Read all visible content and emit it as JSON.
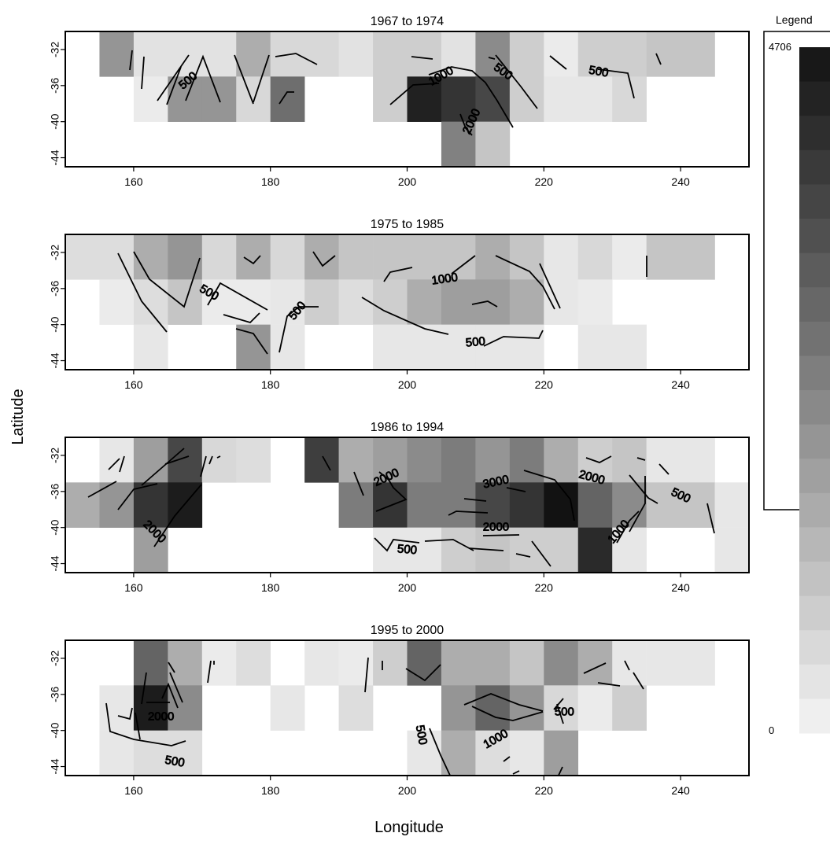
{
  "chart_data": {
    "type": "heatmap",
    "xlabel": "Longitude",
    "ylabel": "Latitude",
    "xlim": [
      150,
      250
    ],
    "ylim": [
      -45,
      -30
    ],
    "x_ticks": [
      160,
      180,
      200,
      220,
      240
    ],
    "y_ticks": [
      -32,
      -36,
      -40,
      -44
    ],
    "cell_lon_width": 5,
    "cell_lat_height": 5,
    "row_lat_bounds": [
      [
        -35,
        -30
      ],
      [
        -40,
        -35
      ],
      [
        -45,
        -40
      ]
    ],
    "contour_levels": [
      500,
      1000,
      2000,
      3000
    ],
    "legend": {
      "title": "Legend",
      "min": 0,
      "max": 4706,
      "max_label": "4706",
      "min_label": "0",
      "steps": 20
    },
    "panels": [
      {
        "title": "1967 to 1974",
        "rows": [
          {
            "lat_top": -30,
            "cells": [
              [
                155,
                2000
              ],
              [
                160,
                400
              ],
              [
                165,
                400
              ],
              [
                170,
                400
              ],
              [
                175,
                1500
              ],
              [
                180,
                600
              ],
              [
                185,
                600
              ],
              [
                190,
                400
              ],
              [
                195,
                800
              ],
              [
                200,
                800
              ],
              [
                205,
                400
              ],
              [
                210,
                2200
              ],
              [
                215,
                800
              ],
              [
                220,
                200
              ],
              [
                225,
                800
              ],
              [
                230,
                800
              ],
              [
                235,
                1000
              ],
              [
                240,
                1000
              ]
            ]
          },
          {
            "lat_top": -35,
            "cells": [
              [
                160,
                200
              ],
              [
                165,
                2000
              ],
              [
                170,
                2000
              ],
              [
                175,
                600
              ],
              [
                180,
                2800
              ],
              [
                195,
                800
              ],
              [
                200,
                4400
              ],
              [
                205,
                4000
              ],
              [
                210,
                3600
              ],
              [
                215,
                800
              ],
              [
                220,
                300
              ],
              [
                225,
                300
              ],
              [
                230,
                600
              ]
            ]
          },
          {
            "lat_top": -40,
            "cells": [
              [
                205,
                2400
              ],
              [
                210,
                1000
              ]
            ]
          }
        ],
        "contour_labels": [
          {
            "text": "500",
            "lon": 168,
            "lat": -35.5,
            "rot": -40
          },
          {
            "text": "1000",
            "lon": 205,
            "lat": -35,
            "rot": -30
          },
          {
            "text": "500",
            "lon": 214,
            "lat": -34.5,
            "rot": 35
          },
          {
            "text": "500",
            "lon": 228,
            "lat": -34.5,
            "rot": 10
          },
          {
            "text": "2000",
            "lon": 209.5,
            "lat": -40,
            "rot": -65
          }
        ]
      },
      {
        "title": "1975 to 1985",
        "rows": [
          {
            "lat_top": -30,
            "cells": [
              [
                150,
                500
              ],
              [
                155,
                500
              ],
              [
                160,
                1500
              ],
              [
                165,
                2000
              ],
              [
                170,
                600
              ],
              [
                175,
                1500
              ],
              [
                180,
                600
              ],
              [
                185,
                1500
              ],
              [
                190,
                1000
              ],
              [
                195,
                1000
              ],
              [
                200,
                1000
              ],
              [
                205,
                1000
              ],
              [
                210,
                1500
              ],
              [
                215,
                1000
              ],
              [
                220,
                300
              ],
              [
                225,
                600
              ],
              [
                230,
                200
              ],
              [
                235,
                1000
              ],
              [
                240,
                1000
              ]
            ]
          },
          {
            "lat_top": -35,
            "cells": [
              [
                155,
                200
              ],
              [
                160,
                500
              ],
              [
                165,
                1000
              ],
              [
                170,
                200
              ],
              [
                175,
                200
              ],
              [
                180,
                300
              ],
              [
                185,
                800
              ],
              [
                190,
                500
              ],
              [
                195,
                800
              ],
              [
                200,
                1500
              ],
              [
                205,
                1800
              ],
              [
                210,
                1800
              ],
              [
                215,
                1500
              ],
              [
                220,
                300
              ],
              [
                225,
                200
              ]
            ]
          },
          {
            "lat_top": -40,
            "cells": [
              [
                160,
                300
              ],
              [
                175,
                2000
              ],
              [
                180,
                300
              ],
              [
                195,
                300
              ],
              [
                200,
                300
              ],
              [
                205,
                300
              ],
              [
                210,
                300
              ],
              [
                215,
                300
              ],
              [
                225,
                300
              ],
              [
                230,
                300
              ]
            ]
          }
        ],
        "contour_labels": [
          {
            "text": "500",
            "lon": 171,
            "lat": -36.5,
            "rot": 30
          },
          {
            "text": "500",
            "lon": 184,
            "lat": -38.5,
            "rot": -50
          },
          {
            "text": "1000",
            "lon": 205.5,
            "lat": -35,
            "rot": -8
          },
          {
            "text": "500",
            "lon": 210,
            "lat": -42,
            "rot": -5
          }
        ]
      },
      {
        "title": "1986 to 1994",
        "rows": [
          {
            "lat_top": -30,
            "cells": [
              [
                155,
                300
              ],
              [
                160,
                1800
              ],
              [
                165,
                3600
              ],
              [
                170,
                600
              ],
              [
                175,
                500
              ],
              [
                185,
                3800
              ],
              [
                190,
                1500
              ],
              [
                195,
                1800
              ],
              [
                200,
                2200
              ],
              [
                205,
                2500
              ],
              [
                210,
                2000
              ],
              [
                215,
                2500
              ],
              [
                220,
                1500
              ],
              [
                225,
                800
              ],
              [
                230,
                1000
              ],
              [
                235,
                300
              ],
              [
                240,
                300
              ]
            ]
          },
          {
            "lat_top": -35,
            "cells": [
              [
                150,
                1500
              ],
              [
                155,
                2000
              ],
              [
                160,
                4000
              ],
              [
                165,
                4500
              ],
              [
                190,
                2500
              ],
              [
                195,
                4000
              ],
              [
                200,
                2500
              ],
              [
                205,
                2500
              ],
              [
                210,
                3600
              ],
              [
                215,
                4000
              ],
              [
                220,
                4706
              ],
              [
                225,
                3000
              ],
              [
                230,
                2200
              ],
              [
                235,
                1000
              ],
              [
                240,
                1000
              ],
              [
                245,
                300
              ]
            ]
          },
          {
            "lat_top": -40,
            "cells": [
              [
                160,
                1800
              ],
              [
                195,
                300
              ],
              [
                200,
                300
              ],
              [
                205,
                800
              ],
              [
                210,
                1000
              ],
              [
                215,
                800
              ],
              [
                220,
                800
              ],
              [
                225,
                4200
              ],
              [
                230,
                300
              ],
              [
                245,
                300
              ]
            ]
          }
        ],
        "contour_labels": [
          {
            "text": "2000",
            "lon": 197,
            "lat": -34.5,
            "rot": -25
          },
          {
            "text": "3000",
            "lon": 213,
            "lat": -35,
            "rot": -12
          },
          {
            "text": "2000",
            "lon": 227,
            "lat": -34.5,
            "rot": 15
          },
          {
            "text": "500",
            "lon": 240,
            "lat": -36.5,
            "rot": 25
          },
          {
            "text": "2000",
            "lon": 163,
            "lat": -40.5,
            "rot": 45
          },
          {
            "text": "2000",
            "lon": 213,
            "lat": -40,
            "rot": 0
          },
          {
            "text": "500",
            "lon": 200,
            "lat": -42.5,
            "rot": 5
          },
          {
            "text": "1000",
            "lon": 231,
            "lat": -40.5,
            "rot": -50
          }
        ]
      },
      {
        "title": "1995 to 2000",
        "rows": [
          {
            "lat_top": -30,
            "cells": [
              [
                160,
                3000
              ],
              [
                165,
                1500
              ],
              [
                170,
                200
              ],
              [
                175,
                500
              ],
              [
                185,
                300
              ],
              [
                190,
                200
              ],
              [
                195,
                800
              ],
              [
                200,
                3000
              ],
              [
                205,
                1500
              ],
              [
                210,
                1500
              ],
              [
                215,
                1000
              ],
              [
                220,
                2200
              ],
              [
                225,
                1500
              ],
              [
                230,
                300
              ],
              [
                235,
                300
              ],
              [
                240,
                300
              ]
            ]
          },
          {
            "lat_top": -35,
            "cells": [
              [
                155,
                300
              ],
              [
                160,
                4500
              ],
              [
                165,
                2200
              ],
              [
                180,
                300
              ],
              [
                190,
                500
              ],
              [
                205,
                2000
              ],
              [
                210,
                3000
              ],
              [
                215,
                2000
              ],
              [
                220,
                600
              ],
              [
                225,
                200
              ],
              [
                230,
                800
              ]
            ]
          },
          {
            "lat_top": -40,
            "cells": [
              [
                155,
                300
              ],
              [
                160,
                500
              ],
              [
                165,
                500
              ],
              [
                200,
                300
              ],
              [
                205,
                1500
              ],
              [
                210,
                500
              ],
              [
                215,
                300
              ],
              [
                220,
                1800
              ]
            ]
          }
        ],
        "contour_labels": [
          {
            "text": "2000",
            "lon": 164,
            "lat": -38.5,
            "rot": 0
          },
          {
            "text": "500",
            "lon": 223,
            "lat": -38,
            "rot": 0
          },
          {
            "text": "500",
            "lon": 202,
            "lat": -40.5,
            "rot": 80
          },
          {
            "text": "1000",
            "lon": 213,
            "lat": -41,
            "rot": -30
          },
          {
            "text": "500",
            "lon": 166,
            "lat": -43.5,
            "rot": 10
          }
        ]
      }
    ]
  }
}
